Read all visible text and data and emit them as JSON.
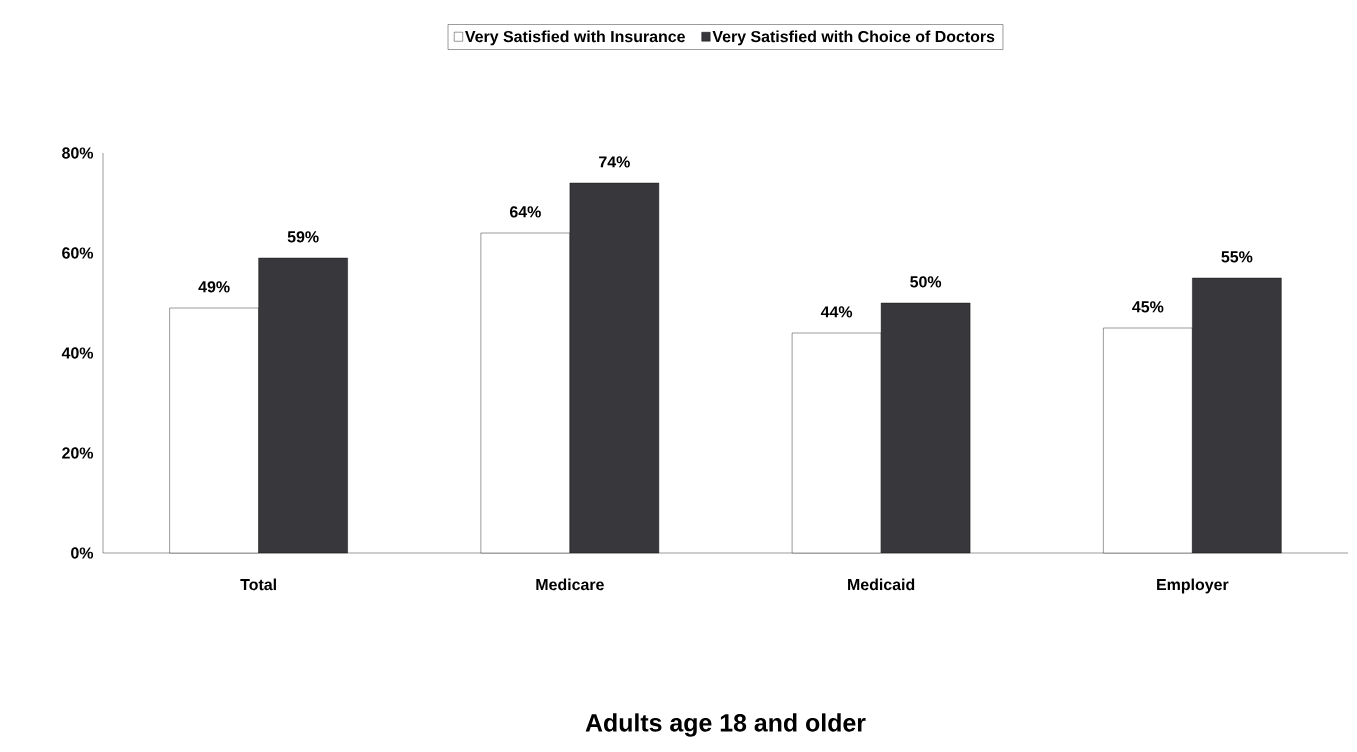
{
  "chart_data": {
    "type": "bar",
    "xlabel": "Adults age 18 and older",
    "categories": [
      "Total",
      "Medicare",
      "Medicaid",
      "Employer"
    ],
    "series": [
      {
        "name": "Very Satisfied with Insurance",
        "color": "#ffffff",
        "values": [
          49,
          64,
          44,
          45
        ],
        "value_labels": [
          "49%",
          "64%",
          "44%",
          "45%"
        ]
      },
      {
        "name": "Very Satisfied with Choice of Doctors",
        "color": "#38383c",
        "values": [
          59,
          74,
          50,
          55
        ],
        "value_labels": [
          "59%",
          "74%",
          "50%",
          "55%"
        ]
      }
    ],
    "ylim": [
      0,
      80
    ],
    "yticks": [
      {
        "value": 0,
        "label": "0%"
      },
      {
        "value": 20,
        "label": "20%"
      },
      {
        "value": 40,
        "label": "40%"
      },
      {
        "value": 60,
        "label": "60%"
      },
      {
        "value": 80,
        "label": "80%"
      }
    ],
    "legend": "top"
  }
}
